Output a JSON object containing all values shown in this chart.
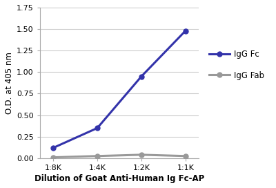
{
  "x_labels": [
    "1:8K",
    "1:4K",
    "1:2K",
    "1:1K"
  ],
  "x_values": [
    0,
    1,
    2,
    3
  ],
  "igg_fc": [
    0.12,
    0.35,
    0.95,
    1.48
  ],
  "igg_fab": [
    0.01,
    0.025,
    0.04,
    0.025
  ],
  "fc_color": "#3333aa",
  "fab_color": "#999999",
  "fc_label": "IgG Fc",
  "fab_label": "IgG Fab",
  "ylabel": "O.D. at 405 nm",
  "xlabel": "Dilution of Goat Anti-Human Ig Fc-AP",
  "ylim": [
    0,
    1.75
  ],
  "yticks": [
    0.0,
    0.25,
    0.5,
    0.75,
    1.0,
    1.25,
    1.5,
    1.75
  ],
  "bg_color": "#ffffff",
  "grid_color": "#cccccc",
  "line_width": 2.2,
  "marker": "o",
  "marker_size": 5,
  "tick_fontsize": 8,
  "label_fontsize": 8.5,
  "legend_fontsize": 8.5
}
